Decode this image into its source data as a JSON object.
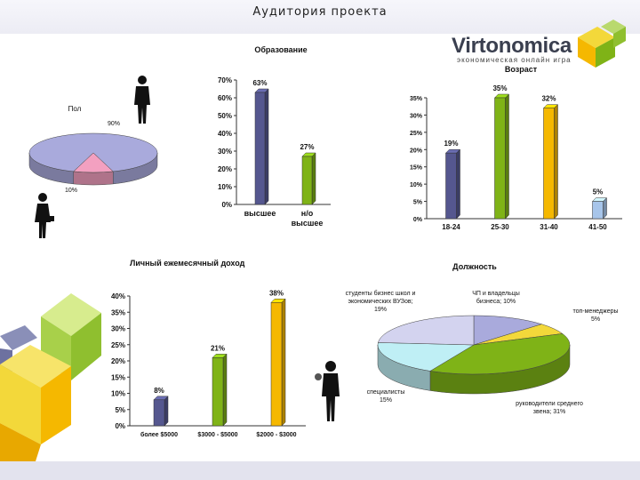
{
  "page": {
    "title": "Аудитория проекта"
  },
  "logo": {
    "name": "Virtonomica",
    "tagline": "экономическая онлайн игра"
  },
  "colors": {
    "navy": "#55578f",
    "green": "#7fb317",
    "orange": "#f5b800",
    "lightblue": "#a7c5ea",
    "pink": "#f3a0c0",
    "lavender": "#a9aadc",
    "cyan": "#bfeff5",
    "teal": "#6f9c8a",
    "yellow": "#f3d83a"
  },
  "chart_data": [
    {
      "id": "gender",
      "type": "pie",
      "title": "Пол",
      "categories": [
        "",
        ""
      ],
      "values": [
        90,
        10
      ],
      "value_labels": [
        "90%",
        "10%"
      ],
      "colors": [
        "#a9aadc",
        "#f3a0c0"
      ]
    },
    {
      "id": "education",
      "type": "bar",
      "title": "Образование",
      "categories": [
        "высшее",
        "н/о высшее"
      ],
      "category_lines": [
        [
          "высшее"
        ],
        [
          "н/о",
          "высшее"
        ]
      ],
      "values": [
        63,
        27
      ],
      "value_labels": [
        "63%",
        "27%"
      ],
      "colors": [
        "#55578f",
        "#7fb317"
      ],
      "ylim": [
        0,
        70
      ],
      "yticks": [
        "0%",
        "10%",
        "20%",
        "30%",
        "40%",
        "50%",
        "60%",
        "70%"
      ]
    },
    {
      "id": "age",
      "type": "bar",
      "title": "Возраст",
      "categories": [
        "18-24",
        "25-30",
        "31-40",
        "41-50"
      ],
      "values": [
        19,
        35,
        32,
        5
      ],
      "value_labels": [
        "19%",
        "35%",
        "32%",
        "5%"
      ],
      "colors": [
        "#55578f",
        "#7fb317",
        "#f5b800",
        "#a7c5ea"
      ],
      "ylim": [
        0,
        35
      ],
      "yticks": [
        "0%",
        "5%",
        "10%",
        "15%",
        "20%",
        "25%",
        "30%",
        "35%"
      ]
    },
    {
      "id": "income",
      "type": "bar",
      "title": "Личный ежемесячный доход",
      "categories": [
        "более $5000",
        "$3000 - $5000",
        "$2000 - $3000"
      ],
      "values": [
        8,
        21,
        38
      ],
      "value_labels": [
        "8%",
        "21%",
        "38%"
      ],
      "colors": [
        "#55578f",
        "#7fb317",
        "#f5b800"
      ],
      "ylim": [
        0,
        40
      ],
      "yticks": [
        "0%",
        "5%",
        "10%",
        "15%",
        "20%",
        "25%",
        "30%",
        "35%",
        "40%"
      ]
    },
    {
      "id": "position",
      "type": "pie",
      "title": "Должность",
      "categories": [
        "ЧП и владельцы бизнеса",
        "топ-менеджеры",
        "руководители среднего звена",
        "специалисты",
        "студенты бизнес школ и экономических ВУЗов"
      ],
      "values": [
        10,
        5,
        31,
        15,
        19
      ],
      "label_lines": [
        [
          "ЧП и владельцы",
          "бизнеса; 10%"
        ],
        [
          "топ-менеджеры",
          "5%"
        ],
        [
          "руководители среднего",
          "звена; 31%"
        ],
        [
          "специалисты",
          "15%"
        ],
        [
          "студенты бизнес школ и",
          "экономических ВУЗов;",
          "19%"
        ]
      ],
      "colors": [
        "#a9aadc",
        "#f3d83a",
        "#7fb317",
        "#bfeff5",
        "#d3d3ef"
      ]
    }
  ]
}
